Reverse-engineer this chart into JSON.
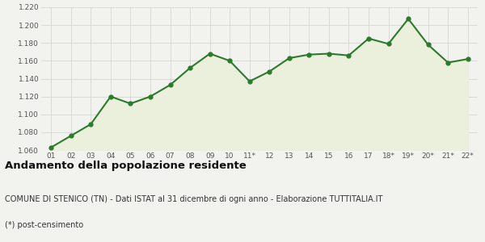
{
  "x_labels": [
    "01",
    "02",
    "03",
    "04",
    "05",
    "06",
    "07",
    "08",
    "09",
    "10",
    "11*",
    "12",
    "13",
    "14",
    "15",
    "16",
    "17",
    "18*",
    "19*",
    "20*",
    "21*",
    "22*"
  ],
  "y_values": [
    1063,
    1076,
    1089,
    1120,
    1112,
    1120,
    1133,
    1152,
    1168,
    1160,
    1137,
    1148,
    1163,
    1167,
    1168,
    1166,
    1185,
    1179,
    1207,
    1178,
    1158,
    1162
  ],
  "ylim": [
    1060,
    1220
  ],
  "yticks": [
    1060,
    1080,
    1100,
    1120,
    1140,
    1160,
    1180,
    1200,
    1220
  ],
  "line_color": "#2d7a2d",
  "fill_color": "#eaf0dc",
  "marker_color": "#2d7a2d",
  "bg_color": "#f2f2ee",
  "grid_color": "#d0d0cc",
  "title": "Andamento della popolazione residente",
  "subtitle": "COMUNE DI STENICO (TN) - Dati ISTAT al 31 dicembre di ogni anno - Elaborazione TUTTITALIA.IT",
  "footnote": "(*) post-censimento",
  "title_fontsize": 9.5,
  "subtitle_fontsize": 7,
  "footnote_fontsize": 7
}
